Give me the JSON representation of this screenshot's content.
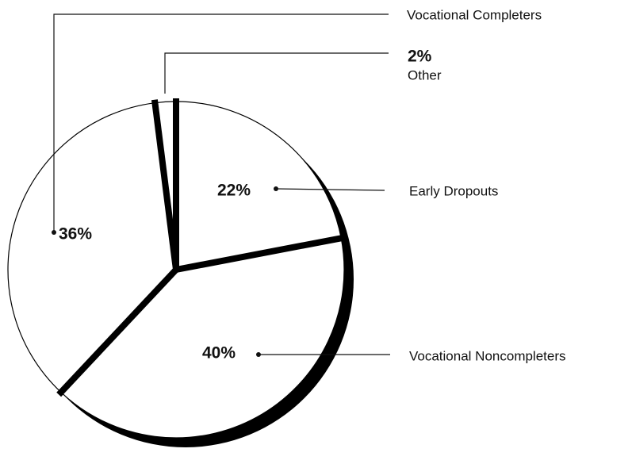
{
  "chart_data": {
    "type": "pie",
    "categories": [
      "Early Dropouts",
      "Vocational Noncompleters",
      "Vocational Completers",
      "Other"
    ],
    "values": [
      22,
      40,
      36,
      2
    ],
    "value_labels": [
      "22%",
      "40%",
      "36%",
      "2%"
    ],
    "color": "#ffffff"
  }
}
